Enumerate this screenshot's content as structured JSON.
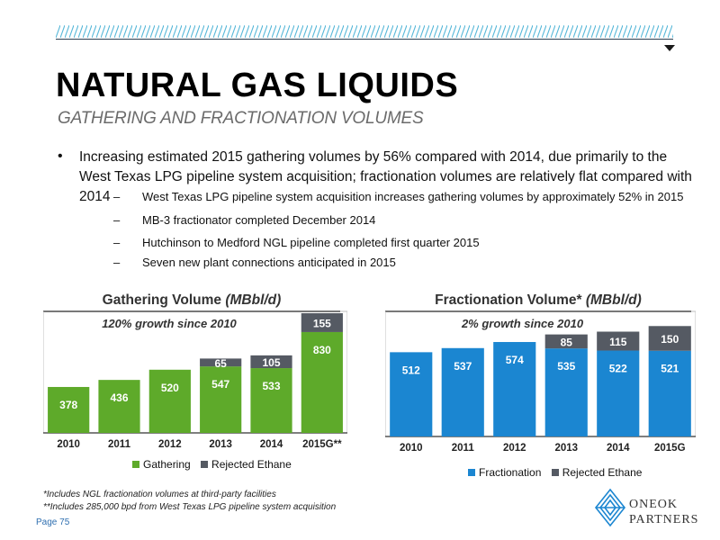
{
  "header": {
    "title": "NATURAL GAS LIQUIDS",
    "subtitle": "GATHERING AND FRACTIONATION VOLUMES"
  },
  "bullets": {
    "marker": "•",
    "main": "Increasing estimated 2015 gathering volumes by 56% compared with 2014, due primarily to the West Texas LPG pipeline system acquisition; fractionation volumes are relatively flat compared with 2014",
    "dash": "–",
    "subs": [
      "West Texas LPG pipeline system acquisition increases gathering volumes by approximately 52% in 2015",
      "MB-3 fractionator completed December 2014",
      "Hutchinson to Medford NGL pipeline completed first quarter 2015",
      "Seven new plant connections anticipated in 2015"
    ]
  },
  "chart_data": [
    {
      "type": "bar",
      "stacked": true,
      "title": "Gathering Volume (MBbl/d)",
      "title_plain": "Gathering Volume ",
      "title_italic": "(MBbl/d)",
      "annotation": "120% growth since 2010",
      "categories": [
        "2010",
        "2011",
        "2012",
        "2013",
        "2014",
        "2015G**"
      ],
      "series": [
        {
          "name": "Gathering",
          "color": "#5eaa2a",
          "values": [
            378,
            436,
            520,
            547,
            533,
            830
          ]
        },
        {
          "name": "Rejected Ethane",
          "color": "#555a63",
          "values": [
            0,
            0,
            0,
            65,
            105,
            155
          ]
        }
      ],
      "ylim": [
        0,
        1000
      ],
      "legend": "bottom"
    },
    {
      "type": "bar",
      "stacked": true,
      "title": "Fractionation Volume* (MBbl/d)",
      "title_plain": "Fractionation Volume* ",
      "title_italic": "(MBbl/d)",
      "annotation": "2% growth since 2010",
      "categories": [
        "2010",
        "2011",
        "2012",
        "2013",
        "2014",
        "2015G"
      ],
      "series": [
        {
          "name": "Fractionation",
          "color": "#1b86d1",
          "values": [
            512,
            537,
            574,
            535,
            522,
            521
          ]
        },
        {
          "name": "Rejected Ethane",
          "color": "#555a63",
          "values": [
            0,
            0,
            0,
            85,
            115,
            150
          ]
        }
      ],
      "ylim": [
        0,
        760
      ],
      "legend": "bottom"
    }
  ],
  "footnotes": [
    "*Includes NGL fractionation volumes at third-party facilities",
    "**Includes 285,000 bpd from West Texas LPG pipeline system acquisition"
  ],
  "page_label": "Page 75",
  "logo": {
    "line1": "ONEOK",
    "line2": "PARTNERS",
    "icon": "oneok-logo-icon",
    "color": "#1b86d1"
  }
}
